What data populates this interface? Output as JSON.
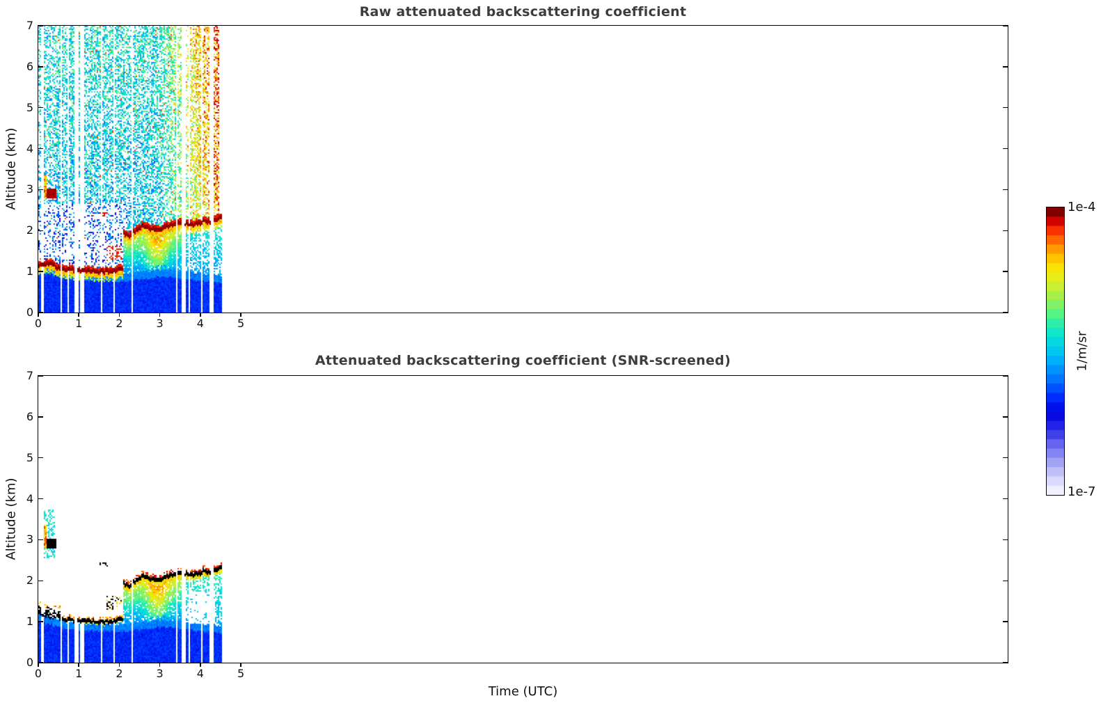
{
  "figure": {
    "background": "#ffffff",
    "title_color": "#3d3d3d",
    "xlabel": "Time (UTC)",
    "ylabel": "Altitude (km)",
    "x_tick_labels": [
      "0",
      "1",
      "2",
      "3",
      "4",
      "5"
    ],
    "y_tick_labels": [
      "0",
      "1",
      "2",
      "3",
      "4",
      "5",
      "6",
      "7"
    ],
    "panels": [
      {
        "id": "raw",
        "title": "Raw attenuated backscattering coefficient"
      },
      {
        "id": "screened",
        "title": "Attenuated backscattering coefficient (SNR-screened)"
      }
    ],
    "colorbar": {
      "top_label": "1e-4",
      "bottom_label": "1e-7",
      "unit_label": "1/m/sr",
      "bands": 31,
      "stops": [
        [
          0.0,
          "#F0F0FF"
        ],
        [
          0.05,
          "#CFCFFB"
        ],
        [
          0.1,
          "#A3A3F6"
        ],
        [
          0.16,
          "#6B6BEF"
        ],
        [
          0.22,
          "#2B2BE9"
        ],
        [
          0.28,
          "#0000E0"
        ],
        [
          0.34,
          "#0033FF"
        ],
        [
          0.4,
          "#0077FF"
        ],
        [
          0.46,
          "#00AAFF"
        ],
        [
          0.52,
          "#00D4E8"
        ],
        [
          0.58,
          "#16EBBE"
        ],
        [
          0.64,
          "#5FF57F"
        ],
        [
          0.7,
          "#A8EF4A"
        ],
        [
          0.76,
          "#E5EF1E"
        ],
        [
          0.81,
          "#FFDD00"
        ],
        [
          0.86,
          "#FFA500"
        ],
        [
          0.9,
          "#FF6600"
        ],
        [
          0.94,
          "#F52800"
        ],
        [
          0.97,
          "#CE0000"
        ],
        [
          1.0,
          "#800000"
        ]
      ]
    }
  },
  "chart_data": {
    "type": "heatmap",
    "title": "Attenuated backscattering coefficient, raw and SNR-screened",
    "x_axis": {
      "label": "Time (UTC)",
      "tick_values": [
        0,
        1,
        2,
        3,
        4,
        5
      ],
      "span_hours": 23.93,
      "data_end_hour": 4.55,
      "noise_end_hour": 4.45
    },
    "y_axis": {
      "label": "Altitude (km)",
      "tick_values": [
        0,
        1,
        2,
        3,
        4,
        5,
        6,
        7
      ],
      "range_km": [
        0,
        7
      ]
    },
    "color_scale": {
      "min": "1e-7",
      "max": "1e-4",
      "units": "1/m/sr",
      "type": "log"
    },
    "render_seed": 42,
    "gap_base_probability": 0.13,
    "gap_cluster_probability": 0.38,
    "gap_dense_t_ranges": [
      [
        0.72,
        0.95
      ],
      [
        2.0,
        2.3
      ],
      [
        3.3,
        3.6
      ]
    ],
    "boundary_layer_top_km": {
      "t": [
        0,
        0.3,
        0.6,
        1.0,
        1.5,
        2.0,
        2.4,
        2.8,
        3.2,
        3.6,
        4.0,
        4.3,
        4.55
      ],
      "z": [
        1.18,
        1.1,
        1.02,
        0.97,
        0.95,
        0.93,
        0.97,
        1.02,
        1.05,
        1.0,
        0.95,
        0.92,
        0.9
      ]
    },
    "low_cloud_base_km": {
      "t_range": [
        0,
        2.08
      ],
      "t": [
        0,
        0.25,
        0.5,
        0.9,
        1.3,
        1.6,
        1.9,
        2.08
      ],
      "z": [
        1.12,
        1.18,
        1.05,
        1.0,
        0.98,
        0.96,
        1.0,
        1.05
      ]
    },
    "main_cloud_base_km": {
      "t_range": [
        2.08,
        4.55
      ],
      "t": [
        2.08,
        2.25,
        2.4,
        2.6,
        2.8,
        3.0,
        3.2,
        3.5,
        3.8,
        4.1,
        4.3,
        4.55
      ],
      "z": [
        1.9,
        1.85,
        1.95,
        2.1,
        2.0,
        1.98,
        2.1,
        2.15,
        2.1,
        2.2,
        2.2,
        2.28
      ]
    },
    "mid_cloud_dashes": {
      "t_range": [
        1.52,
        1.72
      ],
      "z_range": [
        2.35,
        2.45
      ]
    },
    "transition_cloud_dashes": {
      "t_range": [
        1.7,
        2.06
      ],
      "z_range": [
        1.3,
        1.62
      ]
    },
    "elevated_cloud": {
      "t_range": [
        0.2,
        0.45
      ],
      "z_range": [
        2.8,
        3.02
      ]
    },
    "elevated_streak": {
      "t_range": [
        0.13,
        0.2
      ],
      "z_range": [
        2.78,
        3.35
      ]
    },
    "elevated_plume": {
      "t_range": [
        0.15,
        0.4
      ],
      "z_range": [
        2.55,
        3.75
      ]
    },
    "virga": {
      "t_range": [
        2.08,
        3.65
      ],
      "core_time": 2.95,
      "core_width": 0.3
    },
    "late_virga": {
      "t_range": [
        3.65,
        4.55
      ]
    },
    "screened_hole": {
      "t_range": [
        3.7,
        4.35
      ],
      "z_range": [
        0.95,
        1.72
      ]
    },
    "noise": {
      "density": 0.5,
      "sparse_density": 0.26,
      "sparse_t_max": 2.2,
      "sparse_z_range": [
        1.12,
        2.65
      ],
      "warm_start_hour": 2.9,
      "warm_max_boost": 0.4
    }
  }
}
